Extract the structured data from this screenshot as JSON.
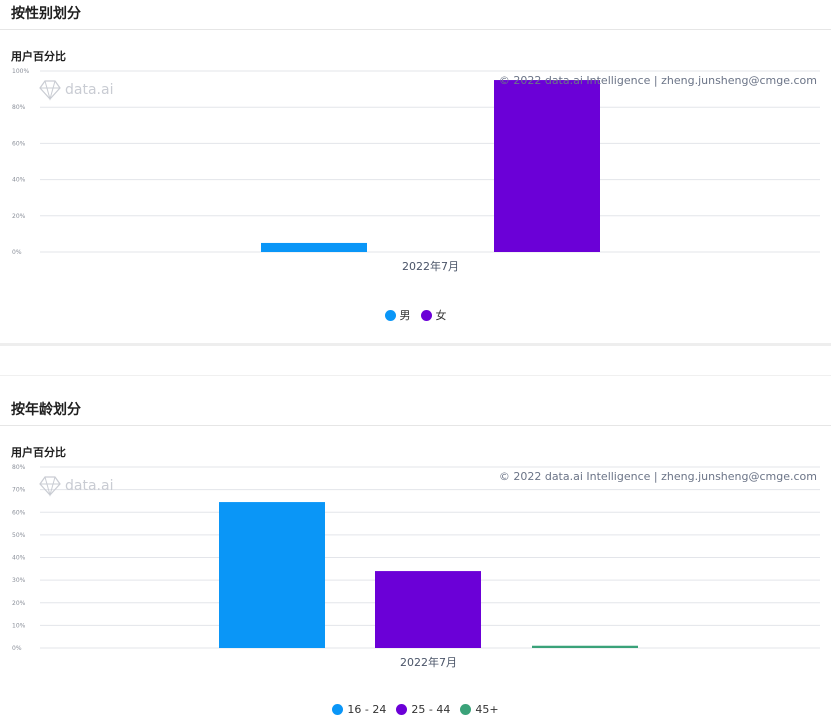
{
  "sections": [
    {
      "title": "按性别划分",
      "chart_label": "用户百分比",
      "copyright": "© 2022 data.ai Intelligence | zheng.junsheng@cmge.com",
      "watermark": "data.ai"
    },
    {
      "title": "按年龄划分",
      "chart_label": "用户百分比",
      "copyright": "© 2022 data.ai Intelligence | zheng.junsheng@cmge.com",
      "watermark": "data.ai"
    }
  ],
  "chart_data": [
    {
      "type": "bar",
      "categories": [
        "2022年7月"
      ],
      "series": [
        {
          "name": "男",
          "values": [
            5
          ],
          "color": "#0a96f7"
        },
        {
          "name": "女",
          "values": [
            95
          ],
          "color": "#6b00d7"
        }
      ],
      "yticks": [
        "0%",
        "20%",
        "40%",
        "60%",
        "80%",
        "100%"
      ],
      "ylim": [
        0,
        100
      ],
      "grid": true,
      "legend": "bottom-center"
    },
    {
      "type": "bar",
      "categories": [
        "2022年7月"
      ],
      "series": [
        {
          "name": "16 - 24",
          "values": [
            64.5
          ],
          "color": "#0a96f7"
        },
        {
          "name": "25 - 44",
          "values": [
            34
          ],
          "color": "#6b00d7"
        },
        {
          "name": "45+",
          "values": [
            1
          ],
          "color": "#3aa279"
        }
      ],
      "yticks": [
        "0%",
        "10%",
        "20%",
        "30%",
        "40%",
        "50%",
        "60%",
        "70%",
        "80%"
      ],
      "ylim": [
        0,
        80
      ],
      "grid": true,
      "legend": "bottom-center"
    }
  ]
}
